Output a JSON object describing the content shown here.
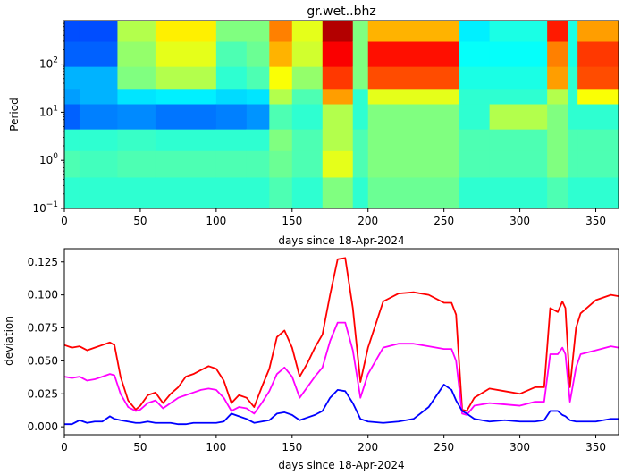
{
  "chart_data": [
    {
      "type": "heatmap",
      "title": "gr.wet..bhz",
      "xlabel": "days since 18-Apr-2024",
      "ylabel": "Period",
      "xlim": [
        0,
        365
      ],
      "ylim": [
        0.1,
        800
      ],
      "y_scale": "log",
      "x_ticks": [
        0,
        50,
        100,
        150,
        200,
        250,
        300,
        350
      ],
      "y_ticks": [
        {
          "value": 0.1,
          "base": "10",
          "exp": "−1"
        },
        {
          "value": 1,
          "base": "10",
          "exp": "0"
        },
        {
          "value": 10,
          "base": "10",
          "exp": "1"
        },
        {
          "value": 100,
          "base": "10",
          "exp": "2"
        }
      ],
      "colormap": "jet",
      "period_bands": [
        {
          "from": 0.1,
          "to": 0.45
        },
        {
          "from": 0.45,
          "to": 1.6
        },
        {
          "from": 1.6,
          "to": 4.5
        },
        {
          "from": 4.5,
          "to": 15
        },
        {
          "from": 15,
          "to": 30
        },
        {
          "from": 30,
          "to": 90
        },
        {
          "from": 90,
          "to": 300
        },
        {
          "from": 300,
          "to": 800
        }
      ],
      "time_segments": [
        {
          "from": 0,
          "to": 10,
          "levels": [
            0.42,
            0.45,
            0.42,
            0.22,
            0.28,
            0.3,
            0.22,
            0.2
          ]
        },
        {
          "from": 10,
          "to": 35,
          "levels": [
            0.42,
            0.44,
            0.42,
            0.25,
            0.3,
            0.3,
            0.22,
            0.2
          ]
        },
        {
          "from": 35,
          "to": 60,
          "levels": [
            0.42,
            0.45,
            0.43,
            0.26,
            0.35,
            0.5,
            0.52,
            0.55
          ]
        },
        {
          "from": 60,
          "to": 100,
          "levels": [
            0.42,
            0.45,
            0.42,
            0.24,
            0.36,
            0.55,
            0.6,
            0.64
          ]
        },
        {
          "from": 100,
          "to": 120,
          "levels": [
            0.42,
            0.45,
            0.42,
            0.25,
            0.34,
            0.42,
            0.45,
            0.5
          ]
        },
        {
          "from": 120,
          "to": 135,
          "levels": [
            0.42,
            0.45,
            0.42,
            0.27,
            0.35,
            0.45,
            0.48,
            0.5
          ]
        },
        {
          "from": 135,
          "to": 150,
          "levels": [
            0.45,
            0.48,
            0.5,
            0.45,
            0.55,
            0.62,
            0.7,
            0.75
          ]
        },
        {
          "from": 150,
          "to": 170,
          "levels": [
            0.42,
            0.45,
            0.45,
            0.42,
            0.45,
            0.52,
            0.58,
            0.6
          ]
        },
        {
          "from": 170,
          "to": 190,
          "levels": [
            0.5,
            0.6,
            0.55,
            0.55,
            0.72,
            0.82,
            0.88,
            0.95
          ]
        },
        {
          "from": 190,
          "to": 200,
          "levels": [
            0.42,
            0.45,
            0.45,
            0.42,
            0.42,
            0.5,
            0.5,
            0.5
          ]
        },
        {
          "from": 200,
          "to": 260,
          "levels": [
            0.48,
            0.5,
            0.5,
            0.5,
            0.6,
            0.8,
            0.86,
            0.7
          ]
        },
        {
          "from": 260,
          "to": 280,
          "levels": [
            0.42,
            0.45,
            0.45,
            0.42,
            0.42,
            0.4,
            0.38,
            0.36
          ]
        },
        {
          "from": 280,
          "to": 318,
          "levels": [
            0.42,
            0.45,
            0.45,
            0.55,
            0.42,
            0.4,
            0.38,
            0.4
          ]
        },
        {
          "from": 318,
          "to": 332,
          "levels": [
            0.45,
            0.5,
            0.5,
            0.5,
            0.55,
            0.72,
            0.75,
            0.85
          ]
        },
        {
          "from": 332,
          "to": 338,
          "levels": [
            0.42,
            0.45,
            0.45,
            0.42,
            0.42,
            0.42,
            0.4,
            0.4
          ]
        },
        {
          "from": 338,
          "to": 365,
          "levels": [
            0.42,
            0.45,
            0.45,
            0.42,
            0.62,
            0.8,
            0.82,
            0.72
          ]
        }
      ]
    },
    {
      "type": "line",
      "xlabel": "days since 18-Apr-2024",
      "ylabel": "deviation",
      "xlim": [
        0,
        365
      ],
      "ylim": [
        -0.006,
        0.135
      ],
      "x_ticks": [
        "0",
        "50",
        "100",
        "150",
        "200",
        "250",
        "300",
        "350"
      ],
      "y_ticks": [
        "0.000",
        "0.025",
        "0.050",
        "0.075",
        "0.100",
        "0.125"
      ],
      "x": [
        0,
        5,
        10,
        15,
        20,
        25,
        30,
        33,
        37,
        42,
        47,
        50,
        55,
        60,
        65,
        70,
        75,
        80,
        85,
        90,
        95,
        100,
        105,
        110,
        115,
        120,
        125,
        130,
        135,
        140,
        145,
        150,
        155,
        160,
        165,
        170,
        175,
        180,
        185,
        190,
        195,
        200,
        210,
        220,
        230,
        240,
        250,
        255,
        258,
        262,
        265,
        270,
        280,
        290,
        300,
        310,
        316,
        320,
        325,
        328,
        330,
        333,
        337,
        340,
        350,
        360,
        365
      ],
      "series": [
        {
          "color": "#ff0000",
          "values": [
            0.062,
            0.06,
            0.061,
            0.058,
            0.06,
            0.062,
            0.064,
            0.062,
            0.038,
            0.02,
            0.013,
            0.016,
            0.024,
            0.026,
            0.018,
            0.025,
            0.03,
            0.038,
            0.04,
            0.043,
            0.046,
            0.044,
            0.035,
            0.018,
            0.024,
            0.022,
            0.015,
            0.03,
            0.044,
            0.068,
            0.073,
            0.06,
            0.038,
            0.048,
            0.06,
            0.07,
            0.1,
            0.127,
            0.128,
            0.09,
            0.034,
            0.06,
            0.095,
            0.101,
            0.102,
            0.1,
            0.094,
            0.094,
            0.085,
            0.013,
            0.012,
            0.022,
            0.029,
            0.027,
            0.025,
            0.03,
            0.03,
            0.09,
            0.087,
            0.095,
            0.09,
            0.03,
            0.075,
            0.086,
            0.096,
            0.1,
            0.099
          ]
        },
        {
          "color": "#ff00ff",
          "values": [
            0.038,
            0.037,
            0.038,
            0.035,
            0.036,
            0.038,
            0.04,
            0.039,
            0.025,
            0.015,
            0.012,
            0.013,
            0.018,
            0.02,
            0.014,
            0.018,
            0.022,
            0.024,
            0.026,
            0.028,
            0.029,
            0.028,
            0.022,
            0.012,
            0.015,
            0.014,
            0.01,
            0.018,
            0.027,
            0.04,
            0.045,
            0.038,
            0.022,
            0.03,
            0.038,
            0.045,
            0.065,
            0.079,
            0.079,
            0.058,
            0.022,
            0.04,
            0.06,
            0.063,
            0.063,
            0.061,
            0.059,
            0.059,
            0.05,
            0.01,
            0.009,
            0.016,
            0.018,
            0.017,
            0.016,
            0.019,
            0.019,
            0.055,
            0.055,
            0.06,
            0.055,
            0.019,
            0.045,
            0.055,
            0.058,
            0.061,
            0.06
          ]
        },
        {
          "color": "#0000ff",
          "values": [
            0.002,
            0.002,
            0.005,
            0.003,
            0.004,
            0.004,
            0.008,
            0.006,
            0.005,
            0.004,
            0.003,
            0.003,
            0.004,
            0.003,
            0.003,
            0.003,
            0.002,
            0.002,
            0.003,
            0.003,
            0.003,
            0.003,
            0.004,
            0.01,
            0.008,
            0.006,
            0.003,
            0.004,
            0.005,
            0.01,
            0.011,
            0.009,
            0.005,
            0.007,
            0.009,
            0.012,
            0.022,
            0.028,
            0.027,
            0.018,
            0.006,
            0.004,
            0.003,
            0.004,
            0.006,
            0.015,
            0.032,
            0.028,
            0.02,
            0.012,
            0.01,
            0.006,
            0.004,
            0.005,
            0.004,
            0.004,
            0.005,
            0.012,
            0.012,
            0.009,
            0.008,
            0.005,
            0.004,
            0.004,
            0.004,
            0.006,
            0.006
          ]
        }
      ]
    }
  ]
}
